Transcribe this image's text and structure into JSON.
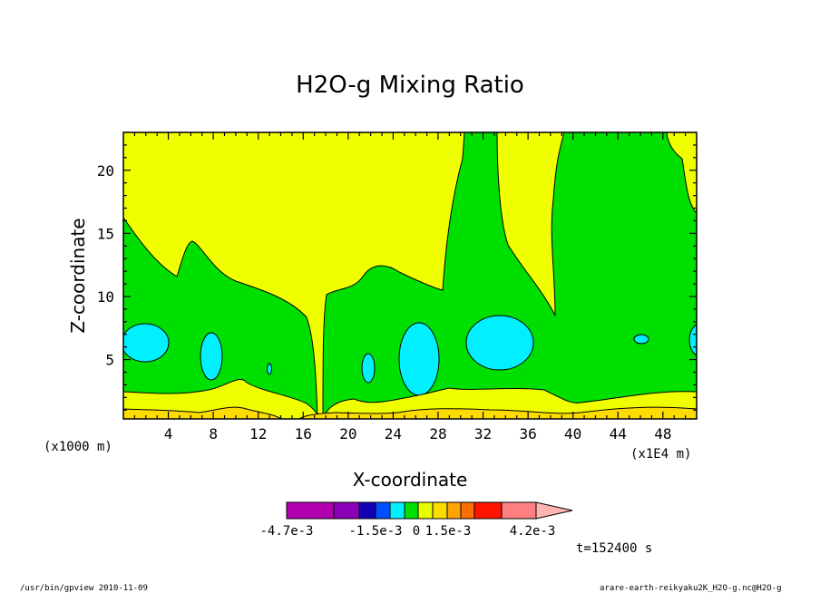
{
  "chart_data": {
    "type": "heatmap",
    "title": "H2O-g Mixing Ratio",
    "xlabel": "X-coordinate",
    "ylabel": "Z-coordinate",
    "x_unit": "(x1E4 m)",
    "y_unit": "(x1000 m)",
    "xlim": [
      0,
      51
    ],
    "ylim": [
      0.3,
      23
    ],
    "x_ticks": [
      "4",
      "8",
      "12",
      "16",
      "20",
      "24",
      "28",
      "32",
      "36",
      "40",
      "44",
      "48"
    ],
    "y_ticks": [
      "5",
      "10",
      "15",
      "20"
    ],
    "colorbar": {
      "labels": [
        "-4.7e-3",
        "-1.5e-3",
        "0",
        "1.5e-3",
        "4.2e-3"
      ],
      "colors": [
        "#b000b0",
        "#8a00b8",
        "#1400b4",
        "#0050ff",
        "#00f0ff",
        "#00e000",
        "#e8ff00",
        "#ffdc00",
        "#ffa400",
        "#ff6e00",
        "#ff1400",
        "#ff8080",
        "#ffb4b4"
      ]
    },
    "fields": [
      {
        "name": "upper-level",
        "color": "#f0ff00"
      },
      {
        "name": "mid-level",
        "color": "#00e000"
      },
      {
        "name": "cell",
        "color": "#00f0ff"
      },
      {
        "name": "lower-band",
        "color": "#f0ff00"
      },
      {
        "name": "surface",
        "color": "#ffdc00"
      }
    ]
  },
  "annotations": {
    "time": "t=152400 s",
    "footer_left": "/usr/bin/gpview   2010-11-09",
    "footer_right": "arare-earth-reikyaku2K_H2O-g.nc@H2O-g"
  }
}
